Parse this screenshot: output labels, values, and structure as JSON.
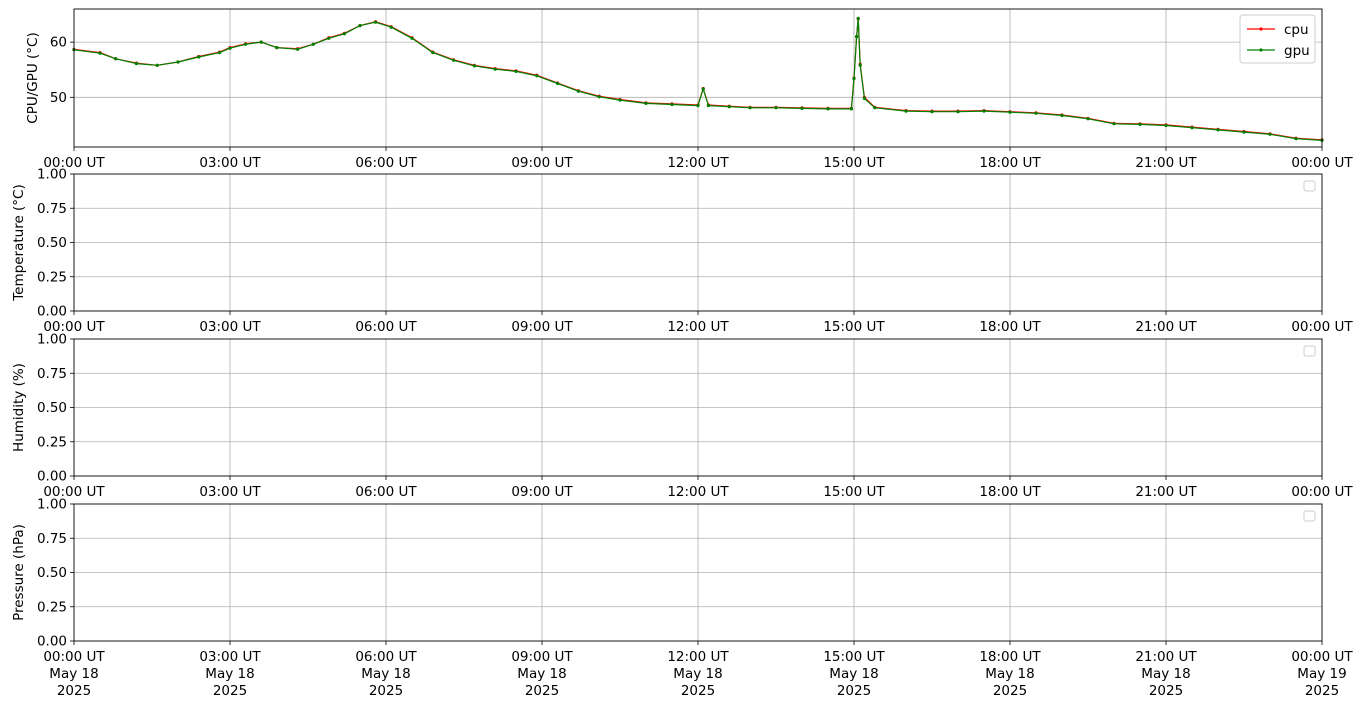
{
  "chart_data": [
    {
      "type": "line",
      "ylabel": "CPU/GPU (°C)",
      "ylim": [
        41,
        66
      ],
      "yticks": [
        50,
        60
      ],
      "grid": true,
      "legend": "top-right",
      "x_ticks": [
        "00:00 UT",
        "03:00 UT",
        "06:00 UT",
        "09:00 UT",
        "12:00 UT",
        "15:00 UT",
        "18:00 UT",
        "21:00 UT",
        "00:00 UT"
      ],
      "x_range_hours": [
        0,
        24
      ],
      "series": [
        {
          "name": "cpu",
          "color": "#ff0000",
          "points": [
            [
              0.0,
              58.7
            ],
            [
              0.5,
              58.1
            ],
            [
              0.8,
              57.0
            ],
            [
              1.2,
              56.2
            ],
            [
              1.6,
              55.8
            ],
            [
              2.0,
              56.4
            ],
            [
              2.4,
              57.4
            ],
            [
              2.8,
              58.2
            ],
            [
              3.0,
              59.0
            ],
            [
              3.3,
              59.7
            ],
            [
              3.6,
              60.0
            ],
            [
              3.9,
              59.0
            ],
            [
              4.3,
              58.8
            ],
            [
              4.6,
              59.6
            ],
            [
              4.9,
              60.8
            ],
            [
              5.2,
              61.6
            ],
            [
              5.5,
              63.0
            ],
            [
              5.8,
              63.7
            ],
            [
              6.1,
              62.8
            ],
            [
              6.5,
              60.8
            ],
            [
              6.9,
              58.2
            ],
            [
              7.3,
              56.8
            ],
            [
              7.7,
              55.8
            ],
            [
              8.1,
              55.2
            ],
            [
              8.5,
              54.8
            ],
            [
              8.9,
              54.0
            ],
            [
              9.3,
              52.6
            ],
            [
              9.7,
              51.2
            ],
            [
              10.1,
              50.2
            ],
            [
              10.5,
              49.6
            ],
            [
              11.0,
              49.0
            ],
            [
              11.5,
              48.8
            ],
            [
              12.0,
              48.6
            ],
            [
              12.1,
              51.6
            ],
            [
              12.2,
              48.6
            ],
            [
              12.6,
              48.4
            ],
            [
              13.0,
              48.2
            ],
            [
              13.5,
              48.2
            ],
            [
              14.0,
              48.1
            ],
            [
              14.5,
              48.0
            ],
            [
              14.95,
              48.0
            ],
            [
              15.0,
              53.5
            ],
            [
              15.05,
              61.0
            ],
            [
              15.08,
              64.2
            ],
            [
              15.12,
              56.0
            ],
            [
              15.2,
              50.0
            ],
            [
              15.4,
              48.2
            ],
            [
              16.0,
              47.6
            ],
            [
              16.5,
              47.5
            ],
            [
              17.0,
              47.5
            ],
            [
              17.5,
              47.6
            ],
            [
              18.0,
              47.4
            ],
            [
              18.5,
              47.2
            ],
            [
              19.0,
              46.8
            ],
            [
              19.5,
              46.2
            ],
            [
              20.0,
              45.3
            ],
            [
              20.5,
              45.2
            ],
            [
              21.0,
              45.0
            ],
            [
              21.5,
              44.6
            ],
            [
              22.0,
              44.2
            ],
            [
              22.5,
              43.8
            ],
            [
              23.0,
              43.4
            ],
            [
              23.5,
              42.6
            ],
            [
              24.0,
              42.3
            ]
          ]
        },
        {
          "name": "gpu",
          "color": "#008000",
          "points": [
            [
              0.0,
              58.6
            ],
            [
              0.5,
              58.0
            ],
            [
              0.8,
              57.0
            ],
            [
              1.2,
              56.1
            ],
            [
              1.6,
              55.8
            ],
            [
              2.0,
              56.4
            ],
            [
              2.4,
              57.3
            ],
            [
              2.8,
              58.1
            ],
            [
              3.0,
              58.9
            ],
            [
              3.3,
              59.6
            ],
            [
              3.6,
              60.0
            ],
            [
              3.9,
              59.0
            ],
            [
              4.3,
              58.7
            ],
            [
              4.6,
              59.6
            ],
            [
              4.9,
              60.7
            ],
            [
              5.2,
              61.5
            ],
            [
              5.5,
              63.0
            ],
            [
              5.8,
              63.6
            ],
            [
              6.1,
              62.7
            ],
            [
              6.5,
              60.7
            ],
            [
              6.9,
              58.1
            ],
            [
              7.3,
              56.7
            ],
            [
              7.7,
              55.7
            ],
            [
              8.1,
              55.1
            ],
            [
              8.5,
              54.7
            ],
            [
              8.9,
              53.9
            ],
            [
              9.3,
              52.5
            ],
            [
              9.7,
              51.1
            ],
            [
              10.1,
              50.1
            ],
            [
              10.5,
              49.5
            ],
            [
              11.0,
              48.9
            ],
            [
              11.5,
              48.7
            ],
            [
              12.0,
              48.5
            ],
            [
              12.1,
              51.5
            ],
            [
              12.2,
              48.5
            ],
            [
              12.6,
              48.3
            ],
            [
              13.0,
              48.1
            ],
            [
              13.5,
              48.1
            ],
            [
              14.0,
              48.0
            ],
            [
              14.5,
              47.9
            ],
            [
              14.95,
              47.9
            ],
            [
              15.0,
              53.4
            ],
            [
              15.05,
              61.0
            ],
            [
              15.08,
              64.3
            ],
            [
              15.12,
              55.8
            ],
            [
              15.2,
              49.8
            ],
            [
              15.4,
              48.1
            ],
            [
              16.0,
              47.5
            ],
            [
              16.5,
              47.4
            ],
            [
              17.0,
              47.4
            ],
            [
              17.5,
              47.5
            ],
            [
              18.0,
              47.3
            ],
            [
              18.5,
              47.1
            ],
            [
              19.0,
              46.7
            ],
            [
              19.5,
              46.1
            ],
            [
              20.0,
              45.2
            ],
            [
              20.5,
              45.1
            ],
            [
              21.0,
              44.9
            ],
            [
              21.5,
              44.5
            ],
            [
              22.0,
              44.1
            ],
            [
              22.5,
              43.7
            ],
            [
              23.0,
              43.3
            ],
            [
              23.5,
              42.5
            ],
            [
              24.0,
              42.2
            ]
          ]
        }
      ]
    },
    {
      "type": "line",
      "ylabel": "Temperature (°C)",
      "ylim": [
        0,
        1
      ],
      "yticks": [
        "0.00",
        "0.25",
        "0.50",
        "0.75",
        "1.00"
      ],
      "grid": true,
      "legend": "top-right",
      "x_ticks": [
        "00:00 UT",
        "03:00 UT",
        "06:00 UT",
        "09:00 UT",
        "12:00 UT",
        "15:00 UT",
        "18:00 UT",
        "21:00 UT",
        "00:00 UT"
      ],
      "series": []
    },
    {
      "type": "line",
      "ylabel": "Humidity (%)",
      "ylim": [
        0,
        1
      ],
      "yticks": [
        "0.00",
        "0.25",
        "0.50",
        "0.75",
        "1.00"
      ],
      "grid": true,
      "legend": "top-right",
      "x_ticks": [
        "00:00 UT",
        "03:00 UT",
        "06:00 UT",
        "09:00 UT",
        "12:00 UT",
        "15:00 UT",
        "18:00 UT",
        "21:00 UT",
        "00:00 UT"
      ],
      "series": []
    },
    {
      "type": "line",
      "ylabel": "Pressure (hPa)",
      "ylim": [
        0,
        1
      ],
      "yticks": [
        "0.00",
        "0.25",
        "0.50",
        "0.75",
        "1.00"
      ],
      "grid": true,
      "legend": "top-right",
      "x_ticks": [
        "00:00 UT",
        "03:00 UT",
        "06:00 UT",
        "09:00 UT",
        "12:00 UT",
        "15:00 UT",
        "18:00 UT",
        "21:00 UT",
        "00:00 UT"
      ],
      "x_date_labels": [
        [
          "May 18",
          "2025"
        ],
        [
          "May 18",
          "2025"
        ],
        [
          "May 18",
          "2025"
        ],
        [
          "May 18",
          "2025"
        ],
        [
          "May 18",
          "2025"
        ],
        [
          "May 18",
          "2025"
        ],
        [
          "May 18",
          "2025"
        ],
        [
          "May 18",
          "2025"
        ],
        [
          "May 19",
          "2025"
        ]
      ],
      "series": []
    }
  ]
}
